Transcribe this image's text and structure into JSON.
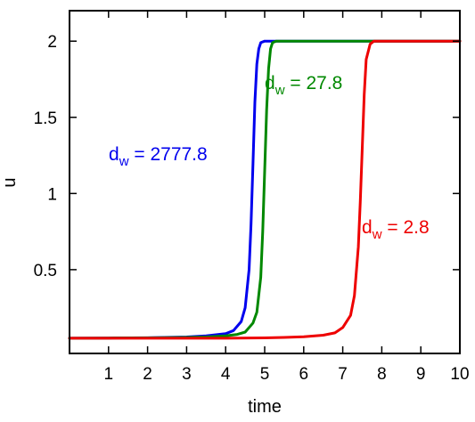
{
  "chart_data": {
    "type": "line",
    "title": "",
    "xlabel": "time",
    "ylabel": "u",
    "xlim": [
      0,
      10
    ],
    "ylim": [
      -0.05,
      2.2
    ],
    "x_ticks": [
      1,
      2,
      3,
      4,
      5,
      6,
      7,
      8,
      9,
      10
    ],
    "y_ticks": [
      0.5,
      1,
      1.5,
      2
    ],
    "x_tick_labels": [
      "1",
      "2",
      "3",
      "4",
      "5",
      "6",
      "7",
      "8",
      "9",
      "10"
    ],
    "y_tick_labels": [
      "0.5",
      "1",
      "1.5",
      "2"
    ],
    "grid": false,
    "legend": "none",
    "series": [
      {
        "label_main": "d",
        "label_sub": "w",
        "label_value": " = 2777.8",
        "color": "#0000ee",
        "x": [
          0,
          1,
          2,
          3,
          3.5,
          4,
          4.2,
          4.4,
          4.5,
          4.6,
          4.65,
          4.7,
          4.75,
          4.8,
          4.85,
          4.9,
          5.0,
          5.2,
          6,
          8,
          10
        ],
        "y": [
          0.05,
          0.051,
          0.053,
          0.058,
          0.065,
          0.08,
          0.1,
          0.16,
          0.25,
          0.5,
          0.8,
          1.2,
          1.6,
          1.85,
          1.95,
          1.99,
          2.0,
          2.0,
          2.0,
          2.0,
          2.0
        ]
      },
      {
        "label_main": "d",
        "label_sub": "w",
        "label_value": " = 27.8",
        "color": "#008800",
        "x": [
          0,
          1,
          2,
          3,
          3.5,
          4,
          4.3,
          4.5,
          4.7,
          4.8,
          4.9,
          4.95,
          5.0,
          5.05,
          5.1,
          5.15,
          5.2,
          5.3,
          6,
          8,
          10
        ],
        "y": [
          0.05,
          0.051,
          0.052,
          0.055,
          0.058,
          0.065,
          0.075,
          0.09,
          0.15,
          0.22,
          0.45,
          0.75,
          1.15,
          1.55,
          1.82,
          1.95,
          1.99,
          2.0,
          2.0,
          2.0,
          2.0
        ]
      },
      {
        "label_main": "d",
        "label_sub": "w",
        "label_value": " = 2.8",
        "color": "#ee0000",
        "x": [
          0,
          1,
          2,
          3,
          4,
          5,
          5.5,
          6,
          6.5,
          6.8,
          7,
          7.2,
          7.3,
          7.4,
          7.45,
          7.5,
          7.55,
          7.6,
          7.7,
          7.8,
          8,
          9,
          10
        ],
        "y": [
          0.05,
          0.05,
          0.05,
          0.05,
          0.05,
          0.052,
          0.055,
          0.06,
          0.07,
          0.085,
          0.12,
          0.2,
          0.33,
          0.65,
          0.95,
          1.3,
          1.65,
          1.88,
          1.98,
          2.0,
          2.0,
          2.0,
          2.0
        ]
      }
    ]
  }
}
